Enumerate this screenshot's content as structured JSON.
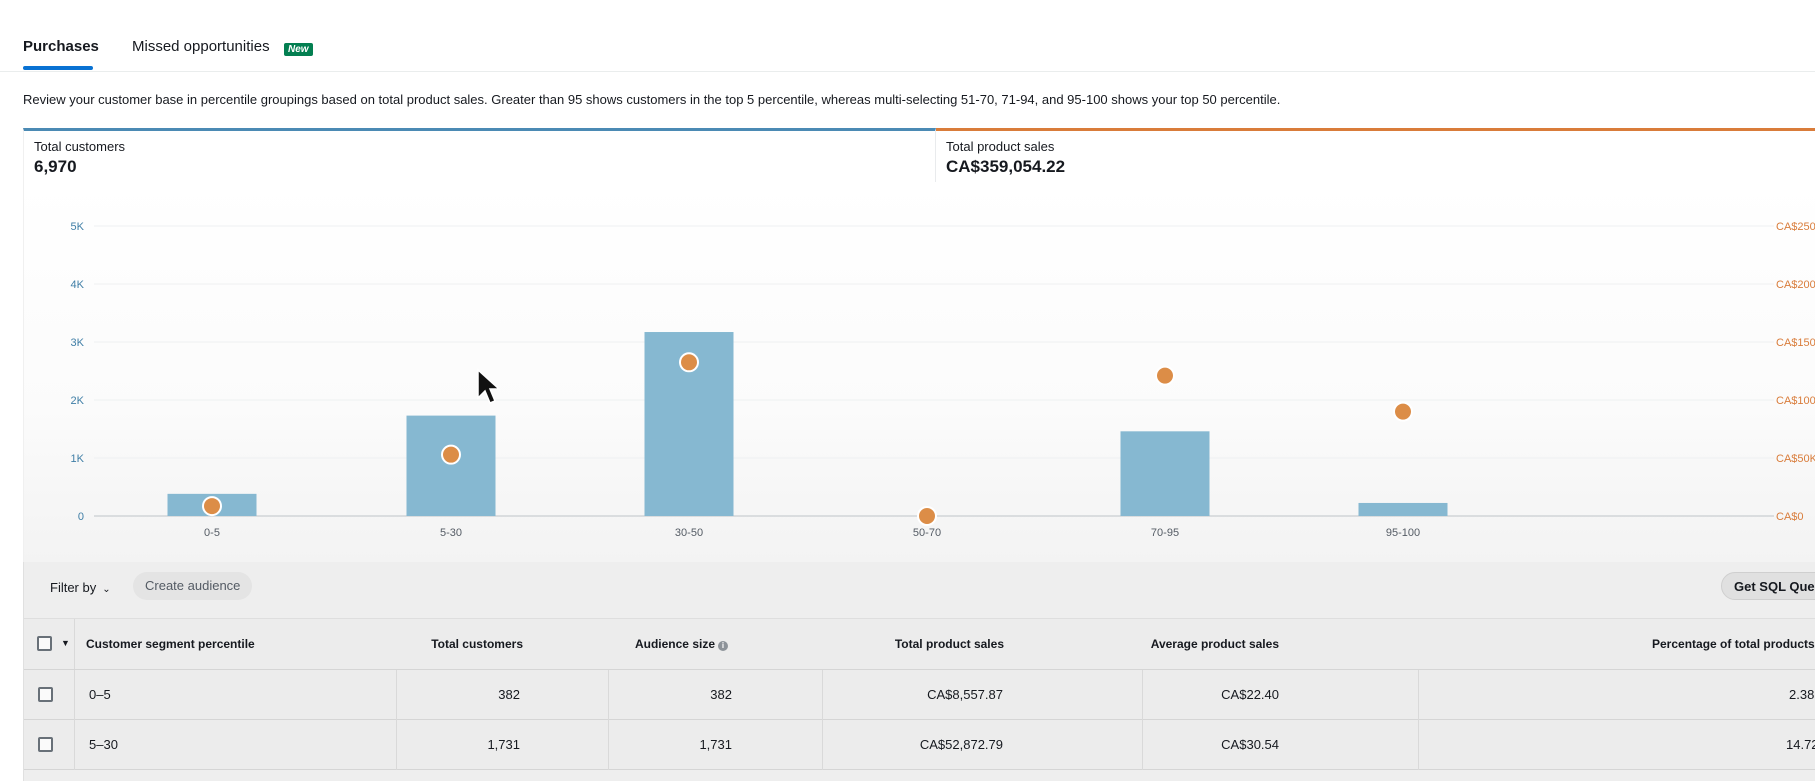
{
  "tabs": {
    "purchases": "Purchases",
    "missed": "Missed opportunities",
    "missed_badge": "New"
  },
  "description": "Review your customer base in percentile groupings based on total product sales. Greater than 95 shows customers in the top 5 percentile, whereas multi-selecting 51-70, 71-94, and 95-100 shows your top 50 percentile.",
  "kpis": {
    "total_customers_label": "Total customers",
    "total_customers_value": "6,970",
    "total_sales_label": "Total product sales",
    "total_sales_value": "CA$359,054.22"
  },
  "chart_data": {
    "type": "bar",
    "categories": [
      "0-5",
      "5-30",
      "30-50",
      "50-70",
      "70-95",
      "95-100"
    ],
    "series": [
      {
        "axis": "left",
        "type": "bar",
        "values": [
          382,
          1731,
          3172,
          0,
          1460,
          225
        ],
        "color": "#86b8d1"
      },
      {
        "axis": "right",
        "type": "scatter",
        "values": [
          8557.87,
          52872.79,
          132500,
          0,
          121000,
          90000
        ],
        "color": "#dc8d47"
      }
    ],
    "y_left": {
      "ticks": [
        "0",
        "1K",
        "2K",
        "3K",
        "4K",
        "5K"
      ],
      "ylim": [
        0,
        5000
      ]
    },
    "y_right": {
      "ticks": [
        "CA$0",
        "CA$50K",
        "CA$100",
        "CA$150",
        "CA$200",
        "CA$250"
      ],
      "ylim": [
        0,
        250000
      ]
    }
  },
  "toolbar": {
    "filter_by": "Filter by",
    "create_audience": "Create audience",
    "get_sql": "Get SQL Query"
  },
  "table": {
    "headers": {
      "segment": "Customer segment percentile",
      "total_customers": "Total customers",
      "audience_size": "Audience size",
      "total_sales": "Total product sales",
      "avg_sales": "Average product sales",
      "pct_total": "Percentage of total products s"
    },
    "rows": [
      {
        "segment": "0–5",
        "total_customers": "382",
        "audience_size": "382",
        "total_sales": "CA$8,557.87",
        "avg_sales": "CA$22.40",
        "pct_total": "2.38"
      },
      {
        "segment": "5–30",
        "total_customers": "1,731",
        "audience_size": "1,731",
        "total_sales": "CA$52,872.79",
        "avg_sales": "CA$30.54",
        "pct_total": "14.72"
      }
    ]
  },
  "colors": {
    "accent_blue": "#4b8ab4",
    "accent_orange": "#d97c3a",
    "bar": "#86b8d1",
    "dot": "#dc8d47",
    "badge": "#037f51"
  }
}
